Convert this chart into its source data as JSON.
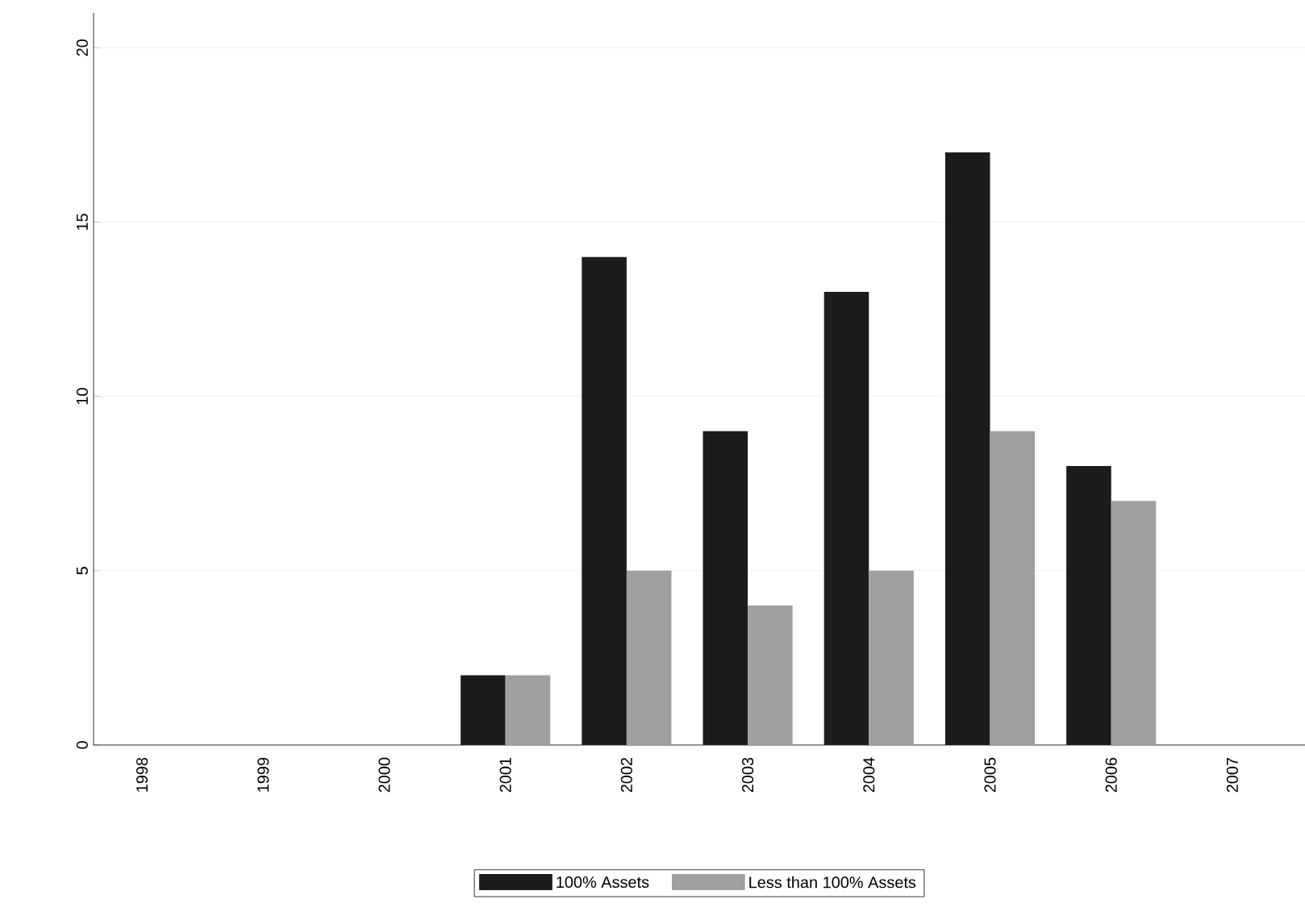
{
  "chart_data": {
    "type": "bar",
    "categories": [
      "1998",
      "1999",
      "2000",
      "2001",
      "2002",
      "2003",
      "2004",
      "2005",
      "2006",
      "2007"
    ],
    "series": [
      {
        "name": "100% Assets",
        "color": "#1c1c1c",
        "values": [
          null,
          null,
          null,
          2,
          14,
          9,
          13,
          17,
          8,
          null
        ]
      },
      {
        "name": "Less than 100% Assets",
        "color": "#a0a0a0",
        "values": [
          null,
          null,
          null,
          2,
          5,
          4,
          5,
          9,
          7,
          null
        ]
      }
    ],
    "ylim": [
      0,
      21
    ],
    "yticks": [
      0,
      5,
      10,
      15,
      20
    ],
    "grid": "y",
    "legend": "bottom"
  }
}
